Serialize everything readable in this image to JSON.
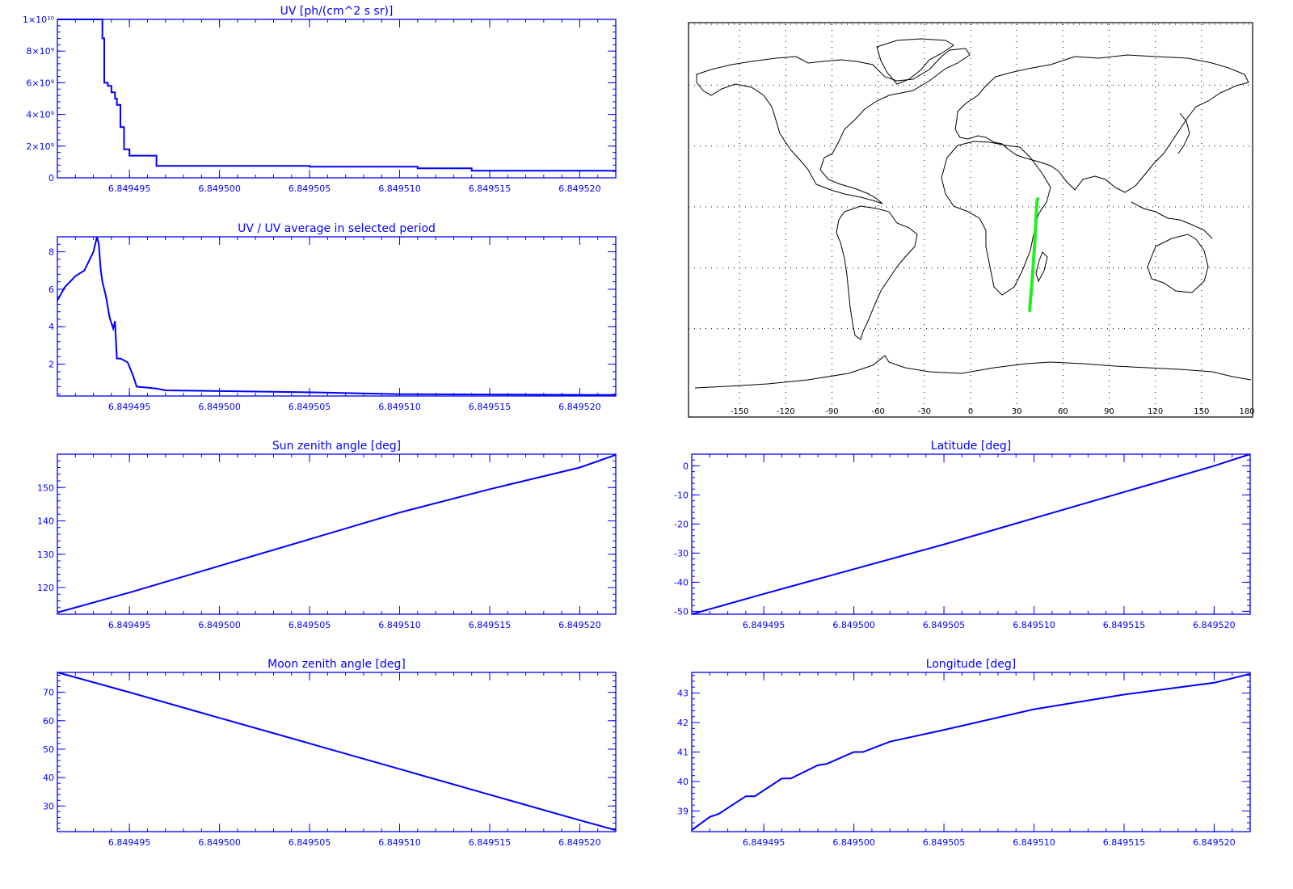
{
  "colors": {
    "axis": "#0000ff",
    "series": "#0000ff",
    "map_track": "#22ee22",
    "coastline": "#000000",
    "map_grid": "#000000"
  },
  "chart_data": [
    {
      "id": "uv",
      "type": "line",
      "title": "UV [ph/(cm^2 s sr)]",
      "xlabel": "",
      "ylabel": "",
      "xlim": [
        6.849491,
        6.849522
      ],
      "ylim": [
        0,
        10000000000.0
      ],
      "xticks": [
        "6.849495",
        "6.849500",
        "6.849505",
        "6.849510",
        "6.849515",
        "6.849520"
      ],
      "xtick_values": [
        6.849495,
        6.8495,
        6.849505,
        6.84951,
        6.849515,
        6.84952
      ],
      "yticks": [
        "0",
        "2×10⁹",
        "4×10⁹",
        "6×10⁹",
        "8×10⁹",
        "1×10¹⁰"
      ],
      "ytick_values": [
        0,
        2000000000.0,
        4000000000.0,
        6000000000.0,
        8000000000.0,
        10000000000.0
      ],
      "x": [
        6.849491,
        6.8494934,
        6.8494935,
        6.8494936,
        6.8494938,
        6.849494,
        6.8494942,
        6.8494943,
        6.8494945,
        6.8494947,
        6.849495,
        6.8494955,
        6.8494965,
        6.849497,
        6.849505,
        6.849511,
        6.849514,
        6.849522
      ],
      "y": [
        10000000000.0,
        10000000000.0,
        8800000000.0,
        6000000000.0,
        5800000000.0,
        5400000000.0,
        5000000000.0,
        4600000000.0,
        3200000000.0,
        1800000000.0,
        1400000000.0,
        1400000000.0,
        750000000.0,
        750000000.0,
        700000000.0,
        600000000.0,
        450000000.0,
        450000000.0
      ]
    },
    {
      "id": "uv-ratio",
      "type": "line",
      "title": "UV / UV average in selected period",
      "xlabel": "",
      "ylabel": "",
      "xlim": [
        6.849491,
        6.849522
      ],
      "ylim": [
        0.3,
        8.8
      ],
      "xticks": [
        "6.849495",
        "6.849500",
        "6.849505",
        "6.849510",
        "6.849515",
        "6.849520"
      ],
      "xtick_values": [
        6.849495,
        6.8495,
        6.849505,
        6.84951,
        6.849515,
        6.84952
      ],
      "yticks": [
        "2",
        "4",
        "6",
        "8"
      ],
      "ytick_values": [
        2,
        4,
        6,
        8
      ],
      "x": [
        6.849491,
        6.8494914,
        6.849492,
        6.8494925,
        6.849493,
        6.8494932,
        6.8494933,
        6.8494934,
        6.8494935,
        6.8494937,
        6.8494939,
        6.8494941,
        6.8494942,
        6.8494943,
        6.8494945,
        6.8494949,
        6.8494952,
        6.8494954,
        6.8494965,
        6.849497,
        6.849505,
        6.84951,
        6.849522
      ],
      "y": [
        5.4,
        6.1,
        6.7,
        7.0,
        8.0,
        8.8,
        8.4,
        7.1,
        6.4,
        5.6,
        4.5,
        3.9,
        4.3,
        2.3,
        2.3,
        2.1,
        1.4,
        0.8,
        0.7,
        0.6,
        0.5,
        0.4,
        0.35
      ]
    },
    {
      "id": "sun-zenith",
      "type": "line",
      "title": "Sun zenith angle [deg]",
      "xlabel": "",
      "ylabel": "",
      "xlim": [
        6.849491,
        6.849522
      ],
      "ylim": [
        112,
        160
      ],
      "xticks": [
        "6.849495",
        "6.849500",
        "6.849505",
        "6.849510",
        "6.849515",
        "6.849520"
      ],
      "xtick_values": [
        6.849495,
        6.8495,
        6.849505,
        6.84951,
        6.849515,
        6.84952
      ],
      "yticks": [
        "120",
        "130",
        "140",
        "150"
      ],
      "ytick_values": [
        120,
        130,
        140,
        150
      ],
      "x": [
        6.849491,
        6.849495,
        6.8495,
        6.849505,
        6.84951,
        6.849515,
        6.84952,
        6.849522
      ],
      "y": [
        112.5,
        118.5,
        126.5,
        134.5,
        142.5,
        149.5,
        156.0,
        159.8
      ]
    },
    {
      "id": "latitude",
      "type": "line",
      "title": "Latitude [deg]",
      "xlabel": "",
      "ylabel": "",
      "xlim": [
        6.849491,
        6.849522
      ],
      "ylim": [
        -51,
        4
      ],
      "xticks": [
        "6.849495",
        "6.849500",
        "6.849505",
        "6.849510",
        "6.849515",
        "6.849520"
      ],
      "xtick_values": [
        6.849495,
        6.8495,
        6.849505,
        6.84951,
        6.849515,
        6.84952
      ],
      "yticks": [
        "-50",
        "-40",
        "-30",
        "-20",
        "-10",
        "0"
      ],
      "ytick_values": [
        -50,
        -40,
        -30,
        -20,
        -10,
        0
      ],
      "x": [
        6.849491,
        6.849495,
        6.8495,
        6.849505,
        6.84951,
        6.849515,
        6.84952,
        6.849522
      ],
      "y": [
        -51.0,
        -44.0,
        -35.5,
        -27.0,
        -18.0,
        -9.0,
        0.0,
        4.0
      ]
    },
    {
      "id": "moon-zenith",
      "type": "line",
      "title": "Moon zenith angle [deg]",
      "xlabel": "",
      "ylabel": "",
      "xlim": [
        6.849491,
        6.849522
      ],
      "ylim": [
        21,
        77
      ],
      "xticks": [
        "6.849495",
        "6.849500",
        "6.849505",
        "6.849510",
        "6.849515",
        "6.849520"
      ],
      "xtick_values": [
        6.849495,
        6.8495,
        6.849505,
        6.84951,
        6.849515,
        6.84952
      ],
      "yticks": [
        "30",
        "40",
        "50",
        "60",
        "70"
      ],
      "ytick_values": [
        30,
        40,
        50,
        60,
        70
      ],
      "x": [
        6.849491,
        6.849495,
        6.8495,
        6.849505,
        6.84951,
        6.849515,
        6.84952,
        6.849522
      ],
      "y": [
        77.0,
        70.0,
        61.0,
        52.0,
        43.0,
        34.0,
        25.0,
        21.5
      ]
    },
    {
      "id": "longitude",
      "type": "line",
      "title": "Longitude [deg]",
      "xlabel": "",
      "ylabel": "",
      "xlim": [
        6.849491,
        6.849522
      ],
      "ylim": [
        38.3,
        43.7
      ],
      "xticks": [
        "6.849495",
        "6.849500",
        "6.849505",
        "6.849510",
        "6.849515",
        "6.849520"
      ],
      "xtick_values": [
        6.849495,
        6.8495,
        6.849505,
        6.84951,
        6.849515,
        6.84952
      ],
      "yticks": [
        "39",
        "40",
        "41",
        "42",
        "43"
      ],
      "ytick_values": [
        39,
        40,
        41,
        42,
        43
      ],
      "x": [
        6.849491,
        6.849492,
        6.8494925,
        6.849494,
        6.8494945,
        6.849496,
        6.8494965,
        6.849498,
        6.8494985,
        6.8495,
        6.8495005,
        6.849502,
        6.849505,
        6.84951,
        6.849515,
        6.84952,
        6.849522
      ],
      "y": [
        38.35,
        38.8,
        38.9,
        39.5,
        39.5,
        40.1,
        40.1,
        40.55,
        40.6,
        41.0,
        41.0,
        41.35,
        41.75,
        42.45,
        42.95,
        43.35,
        43.65
      ]
    },
    {
      "id": "track-map",
      "type": "scatter",
      "title": "",
      "xticks": [
        "-150",
        "-120",
        "-90",
        "-60",
        "-30",
        "0",
        "30",
        "60",
        "90",
        "120",
        "150",
        "180"
      ],
      "xtick_values": [
        -150,
        -120,
        -90,
        -60,
        -30,
        0,
        30,
        60,
        90,
        120,
        150,
        180
      ],
      "xlim": [
        -180,
        180
      ],
      "ylim": [
        -90,
        90
      ],
      "grid": true,
      "track_lon": [
        38.4,
        39.0,
        39.8,
        40.5,
        41.0,
        41.6,
        42.0,
        42.4,
        42.8,
        43.2,
        43.7
      ],
      "track_lat": [
        -51.0,
        -45.0,
        -38.0,
        -31.0,
        -25.0,
        -19.0,
        -13.0,
        -7.0,
        -1.0,
        3.0,
        4.0
      ]
    }
  ]
}
